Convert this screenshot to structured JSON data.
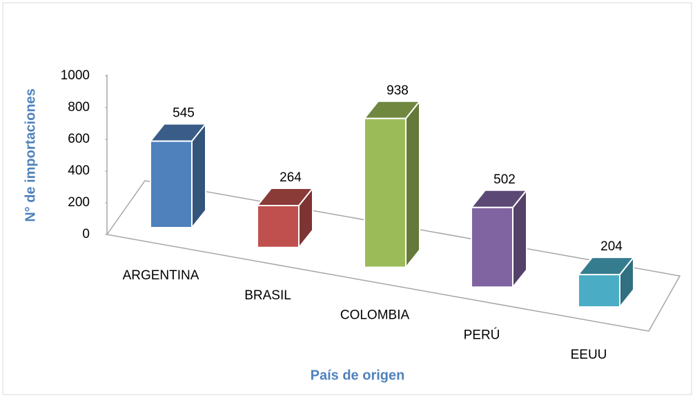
{
  "chart_data": {
    "type": "bar3d",
    "categories": [
      "ARGENTINA",
      "BRASIL",
      "COLOMBIA",
      "PERÚ",
      "EEUU"
    ],
    "values": [
      545,
      264,
      938,
      502,
      204
    ],
    "colors": [
      "#4f81bd",
      "#c0504d",
      "#9bbb59",
      "#8064a2",
      "#4bacc6"
    ],
    "ylim": [
      0,
      1000
    ],
    "yticks": [
      0,
      200,
      400,
      600,
      800,
      1000
    ],
    "y_label": "N° de importaciones",
    "x_label": "País de origen"
  }
}
